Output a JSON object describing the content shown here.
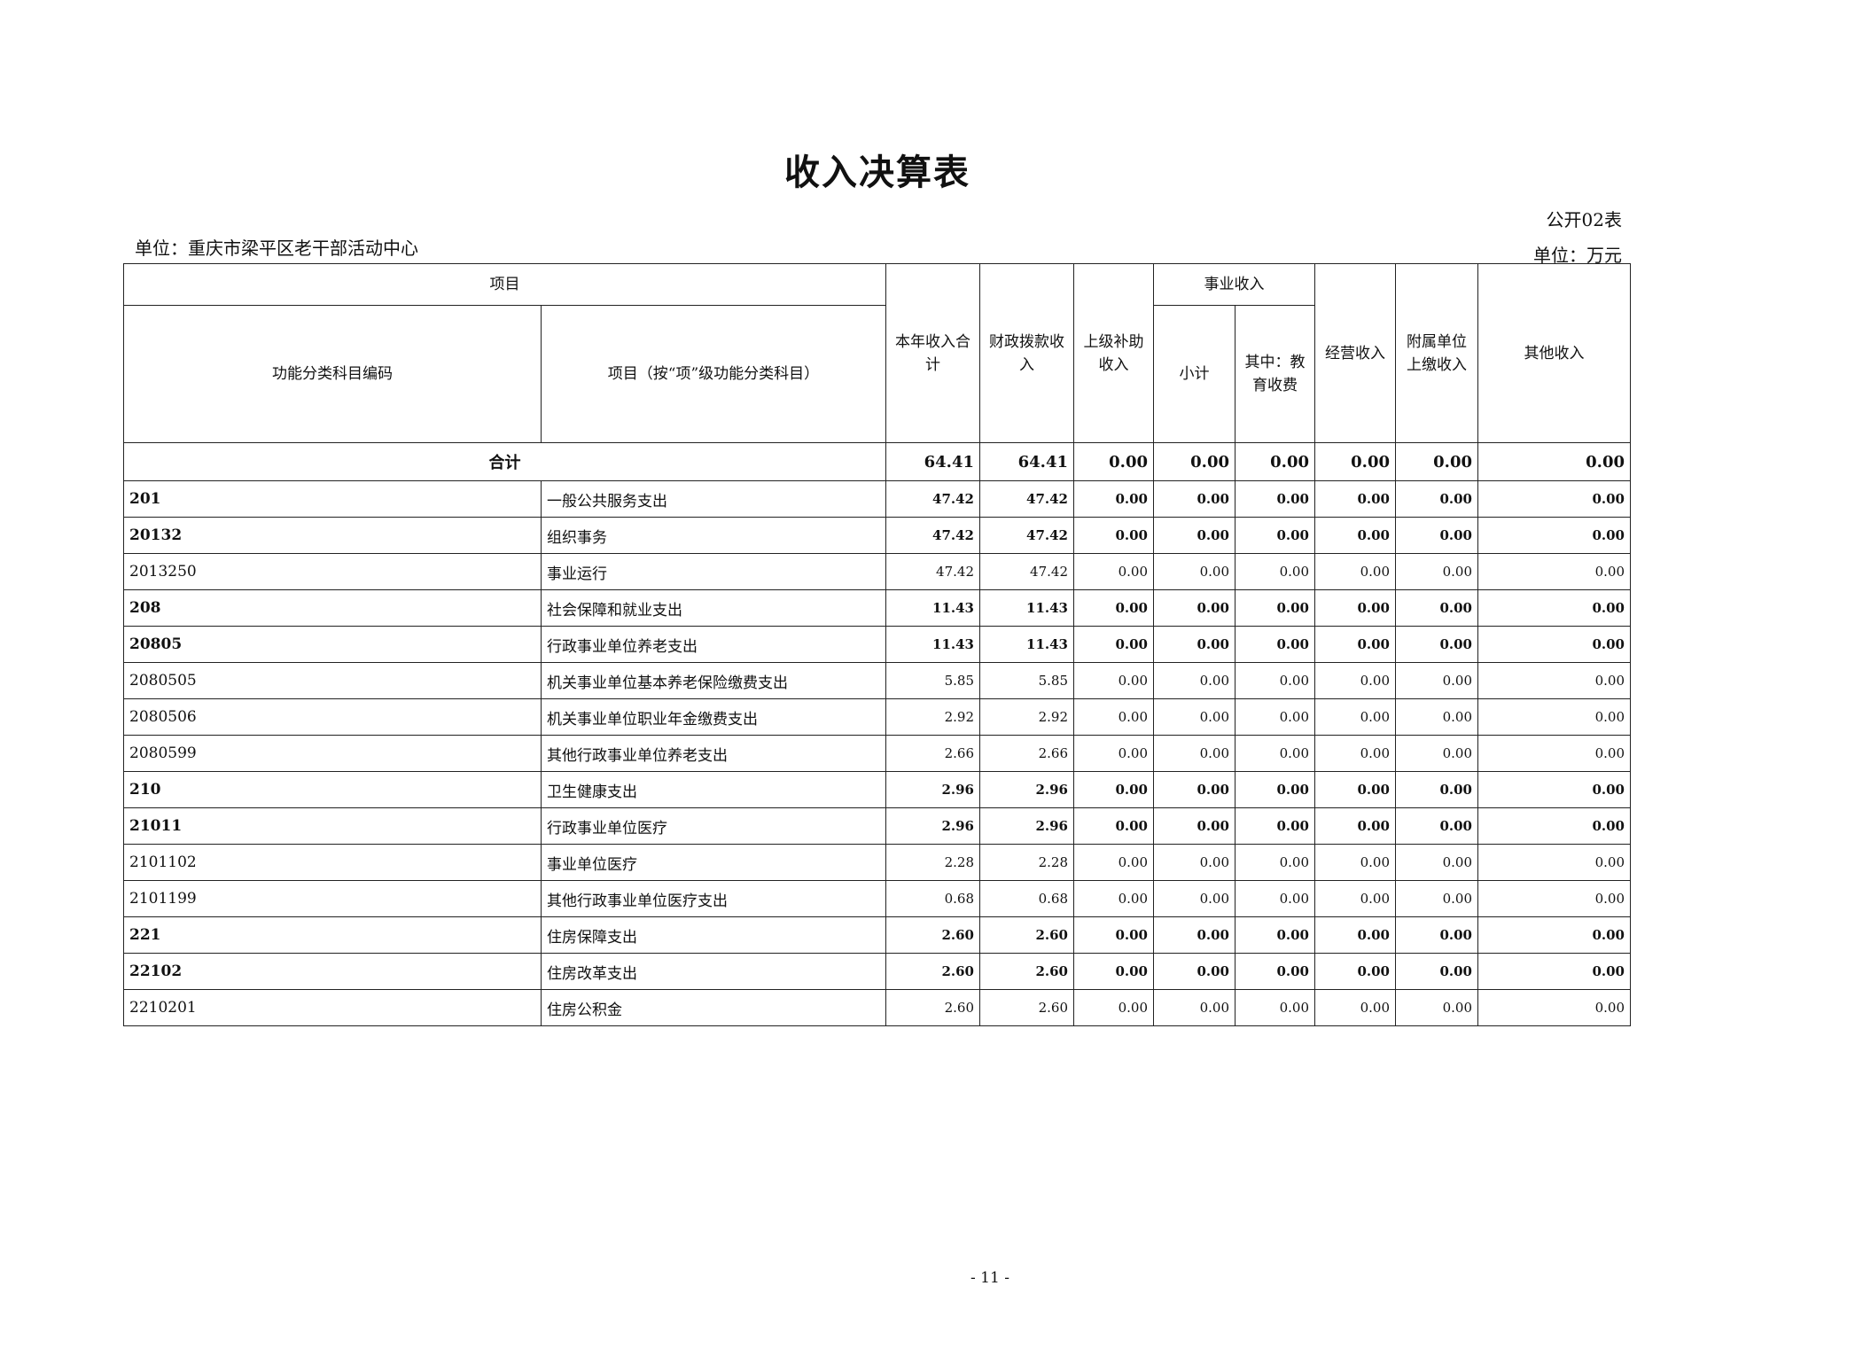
{
  "title": "收入决算表",
  "form_no": "公开02表",
  "unit_org": "单位：重庆市梁平区老干部活动中心",
  "unit_currency": "单位：万元",
  "headers": {
    "item": "项目",
    "code": "功能分类科目编码",
    "name": "项目（按“项”级功能分类科目）",
    "total": "本年收入合计",
    "fiscal": "财政拨款收入",
    "superior": "上级补助收入",
    "business": "事业收入",
    "business_subtotal": "小计",
    "business_edu": "其中：教育收费",
    "operating": "经营收入",
    "affiliated": "附属单位上缴收入",
    "other": "其他收入"
  },
  "total_row": {
    "label": "合计",
    "values": [
      "64.41",
      "64.41",
      "0.00",
      "0.00",
      "0.00",
      "0.00",
      "0.00",
      "0.00"
    ]
  },
  "rows": [
    {
      "code": "201",
      "name": "一般公共服务支出",
      "bold": true,
      "values": [
        "47.42",
        "47.42",
        "0.00",
        "0.00",
        "0.00",
        "0.00",
        "0.00",
        "0.00"
      ]
    },
    {
      "code": "20132",
      "name": "组织事务",
      "bold": true,
      "values": [
        "47.42",
        "47.42",
        "0.00",
        "0.00",
        "0.00",
        "0.00",
        "0.00",
        "0.00"
      ]
    },
    {
      "code": "2013250",
      "name": "事业运行",
      "bold": false,
      "values": [
        "47.42",
        "47.42",
        "0.00",
        "0.00",
        "0.00",
        "0.00",
        "0.00",
        "0.00"
      ]
    },
    {
      "code": "208",
      "name": "社会保障和就业支出",
      "bold": true,
      "values": [
        "11.43",
        "11.43",
        "0.00",
        "0.00",
        "0.00",
        "0.00",
        "0.00",
        "0.00"
      ]
    },
    {
      "code": "20805",
      "name": "行政事业单位养老支出",
      "bold": true,
      "values": [
        "11.43",
        "11.43",
        "0.00",
        "0.00",
        "0.00",
        "0.00",
        "0.00",
        "0.00"
      ]
    },
    {
      "code": "2080505",
      "name": "机关事业单位基本养老保险缴费支出",
      "bold": false,
      "values": [
        "5.85",
        "5.85",
        "0.00",
        "0.00",
        "0.00",
        "0.00",
        "0.00",
        "0.00"
      ]
    },
    {
      "code": "2080506",
      "name": "机关事业单位职业年金缴费支出",
      "bold": false,
      "values": [
        "2.92",
        "2.92",
        "0.00",
        "0.00",
        "0.00",
        "0.00",
        "0.00",
        "0.00"
      ]
    },
    {
      "code": "2080599",
      "name": "其他行政事业单位养老支出",
      "bold": false,
      "values": [
        "2.66",
        "2.66",
        "0.00",
        "0.00",
        "0.00",
        "0.00",
        "0.00",
        "0.00"
      ]
    },
    {
      "code": "210",
      "name": "卫生健康支出",
      "bold": true,
      "values": [
        "2.96",
        "2.96",
        "0.00",
        "0.00",
        "0.00",
        "0.00",
        "0.00",
        "0.00"
      ]
    },
    {
      "code": "21011",
      "name": "行政事业单位医疗",
      "bold": true,
      "values": [
        "2.96",
        "2.96",
        "0.00",
        "0.00",
        "0.00",
        "0.00",
        "0.00",
        "0.00"
      ]
    },
    {
      "code": "2101102",
      "name": "事业单位医疗",
      "bold": false,
      "values": [
        "2.28",
        "2.28",
        "0.00",
        "0.00",
        "0.00",
        "0.00",
        "0.00",
        "0.00"
      ]
    },
    {
      "code": "2101199",
      "name": "其他行政事业单位医疗支出",
      "bold": false,
      "values": [
        "0.68",
        "0.68",
        "0.00",
        "0.00",
        "0.00",
        "0.00",
        "0.00",
        "0.00"
      ]
    },
    {
      "code": "221",
      "name": "住房保障支出",
      "bold": true,
      "values": [
        "2.60",
        "2.60",
        "0.00",
        "0.00",
        "0.00",
        "0.00",
        "0.00",
        "0.00"
      ]
    },
    {
      "code": "22102",
      "name": "住房改革支出",
      "bold": true,
      "values": [
        "2.60",
        "2.60",
        "0.00",
        "0.00",
        "0.00",
        "0.00",
        "0.00",
        "0.00"
      ]
    },
    {
      "code": "2210201",
      "name": "住房公积金",
      "bold": false,
      "values": [
        "2.60",
        "2.60",
        "0.00",
        "0.00",
        "0.00",
        "0.00",
        "0.00",
        "0.00"
      ]
    }
  ],
  "page_number": "- 11 -"
}
